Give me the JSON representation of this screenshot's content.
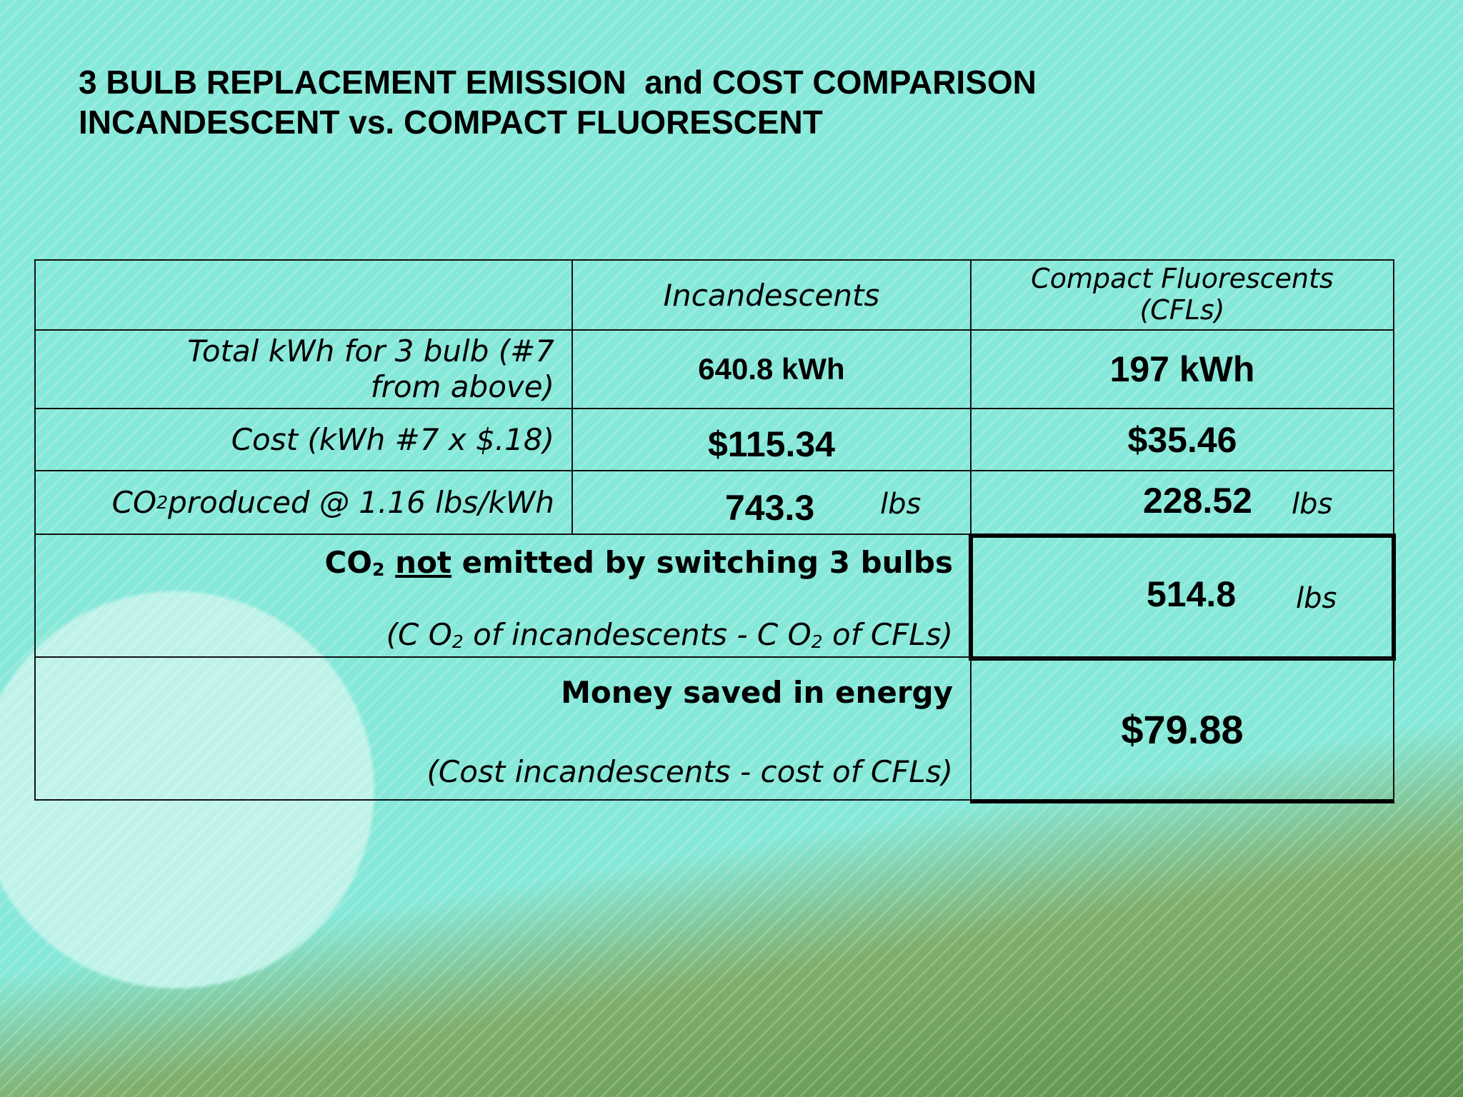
{
  "title": {
    "line1": "3 BULB REPLACEMENT EMISSION  and COST COMPARISON",
    "line2": "INCANDESCENT vs. COMPACT FLUORESCENT"
  },
  "table": {
    "header": [
      "Incandescents",
      "Compact Fluorescents (CFLs)"
    ],
    "rows": [
      {
        "label": "Total kWh for 3 bulb (#7 from above)",
        "incandescent": "640.8 kWh",
        "cfl": "197 kWh"
      },
      {
        "label": "Cost (kWh #7 x $.18)",
        "incandescent": "$115.34",
        "cfl": "$35.46"
      },
      {
        "label_parts": [
          "CO",
          "2",
          " produced @ 1.16 lbs/kWh"
        ],
        "incandescent": "743.3",
        "incandescent_unit": "lbs",
        "cfl": "228.52",
        "cfl_unit": "lbs"
      }
    ],
    "summary": [
      {
        "heading_parts": [
          "CO",
          "2",
          " ",
          "not",
          " emitted by switching 3 bulbs"
        ],
        "note_parts": [
          "(C O",
          "2",
          " of incandescents - C O",
          "2",
          " of CFLs)"
        ],
        "value": "514.8",
        "unit": "lbs"
      },
      {
        "heading": "Money saved in energy",
        "note": "(Cost incandescents - cost of CFLs)",
        "value": "$79.88"
      }
    ]
  }
}
